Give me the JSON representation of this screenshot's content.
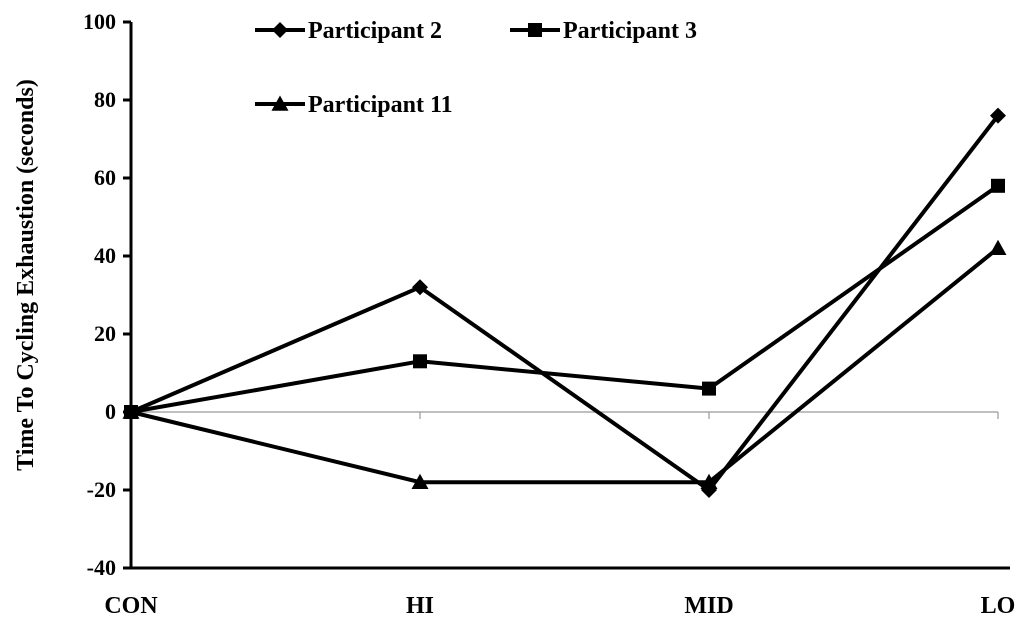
{
  "chart_data": {
    "type": "line",
    "title": "",
    "xlabel": "",
    "ylabel": "Time To Cycling Exhaustion (seconds)",
    "categories": [
      "CON",
      "HI",
      "MID",
      "LO"
    ],
    "ylim": [
      -40,
      100
    ],
    "yticks": [
      100,
      80,
      60,
      40,
      20,
      0,
      -20,
      -40
    ],
    "grid": false,
    "legend_position": "top",
    "series": [
      {
        "name": "Participant 2",
        "marker": "diamond",
        "values": [
          0,
          32,
          -20,
          76
        ]
      },
      {
        "name": "Participant 3",
        "marker": "square",
        "values": [
          0,
          13,
          6,
          58
        ]
      },
      {
        "name": "Participant 11",
        "marker": "triangle",
        "values": [
          0,
          -18,
          -18,
          42
        ]
      }
    ],
    "colors": {
      "line": "#000000",
      "zero_line": "#999999"
    }
  }
}
